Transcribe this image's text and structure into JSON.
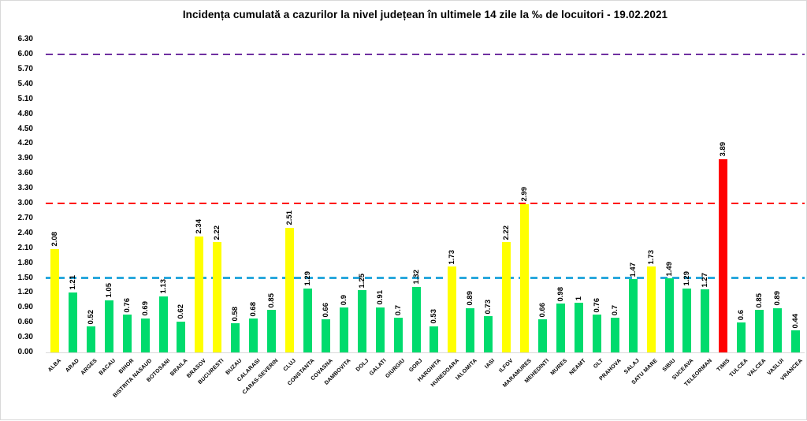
{
  "chart_data": {
    "type": "bar",
    "title": "Incidența cumulată a cazurilor la nivel județean în ultimele 14 zile la ‰ de locuitori - 19.02.2021",
    "categories": [
      "ALBA",
      "ARAD",
      "ARGES",
      "BACAU",
      "BIHOR",
      "BISTRITA NASAUD",
      "BOTOSANI",
      "BRAILA",
      "BRASOV",
      "BUCURESTI",
      "BUZAU",
      "CALARASI",
      "CARAS-SEVERIN",
      "CLUJ",
      "CONSTANTA",
      "COVASNA",
      "DAMBOVITA",
      "DOLJ",
      "GALATI",
      "GIURGIU",
      "GORJ",
      "HARGHITA",
      "HUNEDOARA",
      "IALOMITA",
      "IASI",
      "ILFOV",
      "MARAMURES",
      "MEHEDINTI",
      "MURES",
      "NEAMT",
      "OLT",
      "PRAHOVA",
      "SALAJ",
      "SATU MARE",
      "SIBIU",
      "SUCEAVA",
      "TELEORMAN",
      "TIMIS",
      "TULCEA",
      "VALCEA",
      "VASLUI",
      "VRANCEA"
    ],
    "values": [
      2.08,
      1.21,
      0.52,
      1.05,
      0.76,
      0.69,
      1.13,
      0.62,
      2.34,
      2.22,
      0.58,
      0.68,
      0.85,
      2.51,
      1.29,
      0.66,
      0.9,
      1.25,
      0.91,
      0.7,
      1.32,
      0.53,
      1.73,
      0.89,
      0.73,
      2.22,
      2.99,
      0.66,
      0.98,
      1,
      0.76,
      0.7,
      1.47,
      1.73,
      1.49,
      1.29,
      1.27,
      3.89,
      0.6,
      0.85,
      0.89,
      0.44
    ],
    "value_labels": [
      "2.08",
      "1.21",
      "0.52",
      "1.05",
      "0.76",
      "0.69",
      "1.13",
      "0.62",
      "2.34",
      "2.22",
      "0.58",
      "0.68",
      "0.85",
      "2.51",
      "1.29",
      "0.66",
      "0.9",
      "1.25",
      "0.91",
      "0.7",
      "1.32",
      "0.53",
      "1.73",
      "0.89",
      "0.73",
      "2.22",
      "2.99",
      "0.66",
      "0.98",
      "1",
      "0.76",
      "0.7",
      "1.47",
      "1.73",
      "1.49",
      "1.29",
      "1.27",
      "3.89",
      "0.6",
      "0.85",
      "0.89",
      "0.44"
    ],
    "bar_colors": [
      "yellow",
      "green",
      "green",
      "green",
      "green",
      "green",
      "green",
      "green",
      "yellow",
      "yellow",
      "green",
      "green",
      "green",
      "yellow",
      "green",
      "green",
      "green",
      "green",
      "green",
      "green",
      "green",
      "green",
      "yellow",
      "green",
      "green",
      "yellow",
      "yellow",
      "green",
      "green",
      "green",
      "green",
      "green",
      "green",
      "yellow",
      "green",
      "green",
      "green",
      "red",
      "green",
      "green",
      "green",
      "green"
    ],
    "colors": {
      "green": "#00db6d",
      "yellow": "#ffff00",
      "red": "#ff0000"
    },
    "reference_lines": [
      {
        "value": 1.5,
        "color": "#29a8dc",
        "style": "dashed"
      },
      {
        "value": 3.0,
        "color": "#ff0000",
        "style": "dashed"
      },
      {
        "value": 6.0,
        "color": "#7030a0",
        "style": "dashed"
      }
    ],
    "y_ticks": [
      "0.00",
      "0.30",
      "0.60",
      "0.90",
      "1.20",
      "1.50",
      "1.80",
      "2.10",
      "2.40",
      "2.70",
      "3.00",
      "3.30",
      "3.60",
      "3.90",
      "4.20",
      "4.50",
      "4.80",
      "5.10",
      "5.40",
      "5.70",
      "6.00",
      "6.30"
    ],
    "ylim": [
      0,
      6.37
    ],
    "xlabel": "",
    "ylabel": "",
    "legend": "none",
    "grid": "off"
  }
}
